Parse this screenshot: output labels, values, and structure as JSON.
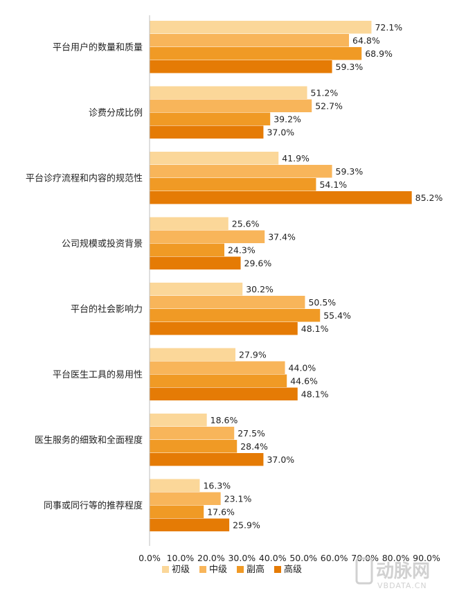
{
  "chart_data": {
    "type": "bar",
    "orientation": "horizontal",
    "categories": [
      "平台用户的数量和质量",
      "诊费分成比例",
      "平台诊疗流程和内容的规范性",
      "公司规模或投资背景",
      "平台的社会影响力",
      "平台医生工具的易用性",
      "医生服务的细致和全面程度",
      "同事或同行等的推荐程度"
    ],
    "series": [
      {
        "name": "初级",
        "color": "#fbd799",
        "values": [
          72.1,
          51.2,
          41.9,
          25.6,
          30.2,
          27.9,
          18.6,
          16.3
        ]
      },
      {
        "name": "中级",
        "color": "#f8b55a",
        "values": [
          64.8,
          52.7,
          59.3,
          37.4,
          50.5,
          44.0,
          27.5,
          23.1
        ]
      },
      {
        "name": "副高",
        "color": "#f09a25",
        "values": [
          68.9,
          39.2,
          54.1,
          24.3,
          55.4,
          44.6,
          28.4,
          17.6
        ]
      },
      {
        "name": "高级",
        "color": "#e57b05",
        "values": [
          59.3,
          37.0,
          85.2,
          29.6,
          48.1,
          48.1,
          37.0,
          25.9
        ]
      }
    ],
    "xlim": [
      0,
      90
    ],
    "xticks": [
      "0.0%",
      "10.0%",
      "20.0%",
      "30.0%",
      "40.0%",
      "50.0%",
      "60.0%",
      "70.0%",
      "80.0%",
      "90.0%"
    ],
    "value_suffix": "%",
    "legend_position": "bottom",
    "grid": false
  },
  "watermark": {
    "logo_text": "动脉网",
    "url_text": "VBDATA.CN"
  }
}
